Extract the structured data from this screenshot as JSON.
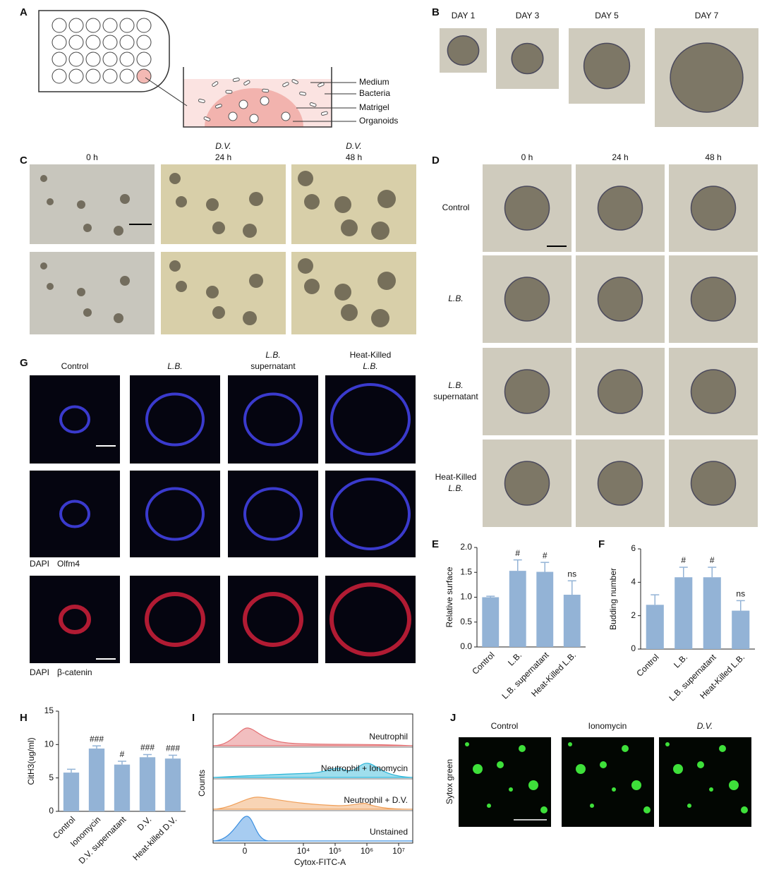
{
  "panels": {
    "A": {
      "label": "A",
      "diagram_labels": [
        "Medium",
        "Bacteria",
        "Matrigel",
        "Organoids"
      ]
    },
    "B": {
      "label": "B",
      "columns": [
        "DAY 1",
        "DAY 3",
        "DAY 5",
        "DAY 7"
      ]
    },
    "C": {
      "label": "C",
      "columns": [
        [
          "0 h"
        ],
        [
          "D.V.",
          "24 h"
        ],
        [
          "D.V.",
          "48 h"
        ]
      ]
    },
    "D": {
      "label": "D",
      "columns": [
        "0 h",
        "24 h",
        "48 h"
      ],
      "rows": [
        [
          "Control"
        ],
        [
          "L.B."
        ],
        [
          "L.B.",
          "supernatant"
        ],
        [
          "Heat-Killed",
          "L.B."
        ]
      ]
    },
    "G": {
      "label": "G",
      "columns": [
        [
          "Control"
        ],
        [
          "L.B."
        ],
        [
          "L.B.",
          "supernatant"
        ],
        [
          "Heat-Killed",
          "L.B."
        ]
      ],
      "legends": [
        [
          "DAPI",
          "Olfm4"
        ],
        [
          "DAPI",
          "β-catenin"
        ]
      ]
    },
    "I": {
      "label": "I",
      "histograms": [
        "Neutrophil",
        "Neutrophil + Ionomycin",
        "Neutrophil + D.V.",
        "Unstained"
      ],
      "colors": [
        "#e36f72",
        "#2bb5d8",
        "#f0a05a",
        "#3b8fe0"
      ],
      "ylabel": "Counts",
      "xlabel": "Cytox-FITC-A",
      "xticks": [
        0,
        {
          "value": 10000,
          "label": "10⁴"
        },
        {
          "value": 100000,
          "label": "10⁵"
        },
        {
          "value": 1000000,
          "label": "10⁶"
        },
        {
          "value": 10000000,
          "label": "10⁷"
        }
      ]
    },
    "J": {
      "label": "J",
      "columns": [
        "Control",
        "Ionomycin",
        "D.V."
      ],
      "ylabel": "Sytox green"
    }
  },
  "chart_data": [
    {
      "type": "bar",
      "panel_label": "E",
      "ylabel": "Relative surface",
      "categories": [
        "Control",
        "L.B.",
        "L.B. supernatant",
        "Heat-Killed L.B."
      ],
      "values": [
        1.0,
        1.53,
        1.51,
        1.05
      ],
      "errors": [
        0.02,
        0.22,
        0.19,
        0.28
      ],
      "annotations": [
        null,
        "#",
        "#",
        "ns"
      ],
      "color": "#93b3d6",
      "ylim": [
        0,
        2
      ],
      "yticks": [
        {
          "value": 0,
          "label": "0.0"
        },
        0.5,
        {
          "value": 1,
          "label": "1.0"
        },
        1.5,
        {
          "value": 2,
          "label": "2.0"
        }
      ]
    },
    {
      "type": "bar",
      "panel_label": "F",
      "ylabel": "Budding number",
      "categories": [
        "Control",
        "L.B.",
        "L.B. supernatant",
        "Heat-Killed L.B."
      ],
      "values": [
        2.65,
        4.3,
        4.3,
        2.3
      ],
      "errors": [
        0.6,
        0.6,
        0.6,
        0.6
      ],
      "annotations": [
        null,
        "#",
        "#",
        "ns"
      ],
      "color": "#93b3d6",
      "ylim": [
        0,
        6
      ],
      "yticks": [
        0,
        2,
        4,
        6
      ]
    },
    {
      "type": "bar",
      "panel_label": "H",
      "ylabel": "CitH3(ug/ml)",
      "categories": [
        "Control",
        "Ionomycin",
        "D.V. supernatant",
        "D.V.",
        "Heat-killed D.V."
      ],
      "values": [
        5.8,
        9.4,
        7.0,
        8.1,
        7.9
      ],
      "errors": [
        0.5,
        0.4,
        0.5,
        0.4,
        0.5
      ],
      "annotations": [
        null,
        "###",
        "#",
        "###",
        "###"
      ],
      "color": "#93b3d6",
      "ylim": [
        0,
        15
      ],
      "yticks": [
        0,
        5,
        10,
        15
      ]
    }
  ]
}
